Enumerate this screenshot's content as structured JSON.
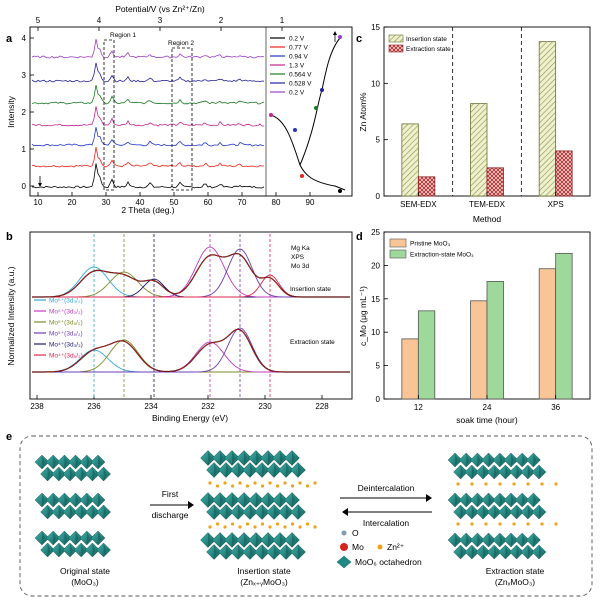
{
  "panel_letters": {
    "a": "a",
    "b": "b",
    "c": "c",
    "d": "d",
    "e": "e"
  },
  "panel_a": {
    "top_axis_label": "Potential/V (vs Zn²⁺/Zn)",
    "top_ticks": [
      "5",
      "4",
      "3",
      "2",
      "1"
    ],
    "x_ticks": [
      "10",
      "20",
      "30",
      "40",
      "50",
      "60",
      "70",
      "80",
      "90"
    ],
    "y_ticks": [
      "0",
      "1",
      "2",
      "3",
      "4"
    ],
    "xlabel": "2 Theta (deg.)",
    "ylabel": "Intensity",
    "region1": "Region 1",
    "region2": "Region 2",
    "legend": [
      {
        "label": "0.2 V",
        "color": "#000000"
      },
      {
        "label": "0.77 V",
        "color": "#e8251b"
      },
      {
        "label": "0.94 V",
        "color": "#2236c8"
      },
      {
        "label": "1.3 V",
        "color": "#c2268c"
      },
      {
        "label": "0.564 V",
        "color": "#1a7a22"
      },
      {
        "label": "0.528 V",
        "color": "#23229a"
      },
      {
        "label": "0.2 V",
        "color": "#9b3fc4"
      }
    ]
  },
  "panel_b": {
    "xlabel": "Binding Energy (eV)",
    "ylabel": "Normalized Intensity (a.u.)",
    "x_ticks": [
      "238",
      "236",
      "234",
      "232",
      "230",
      "228"
    ],
    "info": [
      "Mg Ka",
      "XPS",
      "Mo 3d"
    ],
    "insertion_label": "Insertion state",
    "extraction_label": "Extraction state",
    "legend": [
      {
        "label": "Mo⁶⁺(3d₃/₂)",
        "color": "#35a7d8"
      },
      {
        "label": "Mo⁵⁺(3d₃/₂)",
        "color": "#c33bbf"
      },
      {
        "label": "Mo⁶⁺(3d₅/₂)",
        "color": "#7d8b2a"
      },
      {
        "label": "Mo⁵⁺(3d₅/₂)",
        "color": "#6d3cb8"
      },
      {
        "label": "Mo⁴⁺(3d₃/₂)",
        "color": "#1a1a6b"
      },
      {
        "label": "Mo⁴⁺(3d₅/₂)",
        "color": "#e0244f"
      }
    ]
  },
  "panel_c": {
    "chart_data": {
      "type": "bar",
      "categories": [
        "SEM-EDX",
        "TEM-EDX",
        "XPS"
      ],
      "series": [
        {
          "name": "Insertion state",
          "values": [
            6.4,
            8.2,
            13.7
          ]
        },
        {
          "name": "Extraction state",
          "values": [
            1.7,
            2.5,
            4.0
          ]
        }
      ],
      "xlabel": "Method",
      "ylabel": "Zn Atom%",
      "ylim": [
        0,
        15
      ],
      "y_ticks": [
        "0",
        "5",
        "10",
        "15"
      ]
    }
  },
  "panel_d": {
    "chart_data": {
      "type": "bar",
      "categories": [
        "12",
        "24",
        "36"
      ],
      "series": [
        {
          "name": "Pristine MoO₃",
          "values": [
            9.0,
            14.7,
            19.5
          ]
        },
        {
          "name": "Extraction-state MoO₃",
          "values": [
            13.2,
            17.6,
            21.8
          ]
        }
      ],
      "xlabel": "soak time (hour)",
      "ylabel": "c_Mo (μg mL⁻¹)",
      "ylim": [
        0,
        25
      ],
      "y_ticks": [
        "0",
        "5",
        "10",
        "15",
        "20",
        "25"
      ]
    }
  },
  "panel_e": {
    "first": "First",
    "discharge": "discharge",
    "deintercalation": "Deintercalation",
    "intercalation": "Intercalation",
    "original_state": "Original state",
    "original_formula": "(MoO₃)",
    "insertion_state": "Insertion state",
    "insertion_formula": "(Znₓ₊ᵧMoO₃)",
    "extraction_state": "Extraction state",
    "extraction_formula": "(ZnₓMoO₃)",
    "legend_o": "O",
    "legend_mo": "Mo",
    "legend_zn": "Zn²⁺",
    "legend_octahedron": "MoO₆ octahedron"
  },
  "colors": {
    "teal": "#1f8a86",
    "teal_dark": "#125f5c",
    "zn": "#f0a21c",
    "mo": "#d6241c",
    "insertion_hatch": "#c6cc8a",
    "extraction_hatch": "#b32a2a",
    "pristine_bar": "#f9c597",
    "extraction_bar": "#9ed89b"
  }
}
